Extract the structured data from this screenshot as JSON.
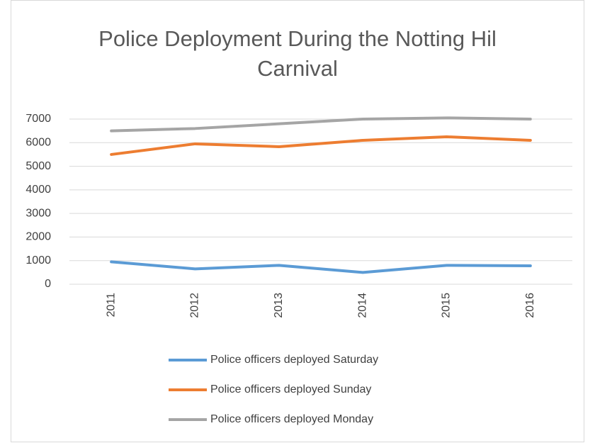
{
  "chart_data": {
    "type": "line",
    "title": "Police Deployment During the Notting Hil Carnival",
    "categories": [
      "2011",
      "2012",
      "2013",
      "2014",
      "2015",
      "2016"
    ],
    "series": [
      {
        "name": "Police officers deployed Saturday",
        "color": "#5b9bd5",
        "values": [
          950,
          650,
          800,
          500,
          800,
          780
        ]
      },
      {
        "name": "Police officers deployed Sunday",
        "color": "#ed7d31",
        "values": [
          5500,
          5950,
          5830,
          6100,
          6250,
          6100
        ]
      },
      {
        "name": "Police officers deployed Monday",
        "color": "#a5a5a5",
        "values": [
          6500,
          6600,
          6800,
          7000,
          7050,
          7000
        ]
      }
    ],
    "ylim": [
      0,
      7000
    ],
    "yticks": [
      0,
      1000,
      2000,
      3000,
      4000,
      5000,
      6000,
      7000
    ],
    "grid": true,
    "legend": "bottom"
  }
}
